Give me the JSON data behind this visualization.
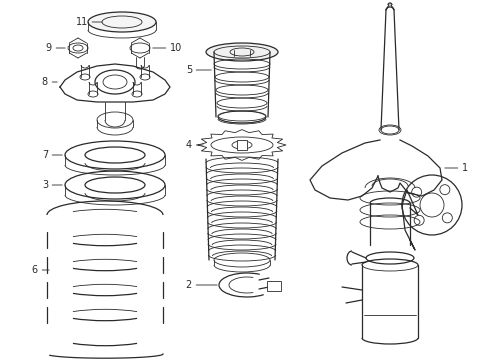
{
  "bg_color": "#ffffff",
  "line_color": "#2a2a2a",
  "fig_width": 4.89,
  "fig_height": 3.6,
  "dpi": 100,
  "lw": 0.9,
  "tlw": 0.6,
  "clw": 0.6
}
